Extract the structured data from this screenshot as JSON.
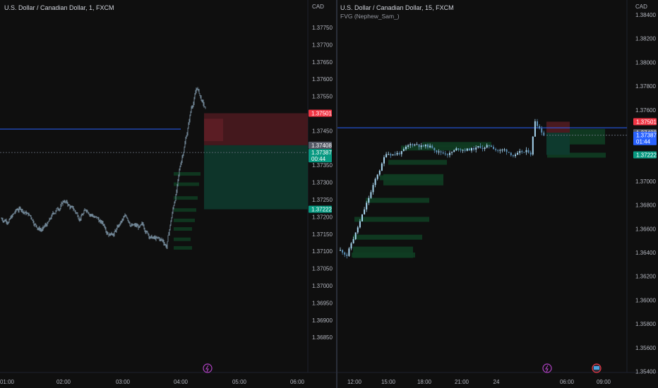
{
  "left_chart": {
    "title": "U.S. Dollar / Canadian Dollar, 1, FXCM",
    "currency": "CAD",
    "time_labels": [
      "01:00",
      "02:00",
      "03:00",
      "04:00",
      "05:00",
      "06:00"
    ],
    "chart_data": {
      "type": "candlestick",
      "symbol": "USDCAD",
      "interval": "1",
      "y_ticks": [
        "1.37750",
        "1.37700",
        "1.37650",
        "1.37600",
        "1.37550",
        "1.37450",
        "1.37350",
        "1.37300",
        "1.37250",
        "1.37200",
        "1.37150",
        "1.37100",
        "1.37050",
        "1.37000",
        "1.36950",
        "1.36900",
        "1.36850"
      ],
      "price_labels": [
        {
          "value": 1.37501,
          "text": "1.37501",
          "color": "#f23645"
        },
        {
          "value": 1.37408,
          "text": "1.37408",
          "color": "#555a66"
        },
        {
          "value": 1.37387,
          "text": "1.37387",
          "sub": "00:44",
          "color": "#089981"
        },
        {
          "value": 1.37222,
          "text": "1.37222",
          "color": "#089981"
        }
      ],
      "horizontal_line": 1.37455
    }
  },
  "right_chart": {
    "title": "U.S. Dollar / Canadian Dollar, 15, FXCM",
    "indicator": "FVG (Nephew_Sam_)",
    "currency": "CAD",
    "time_labels": [
      "12:00",
      "15:00",
      "18:00",
      "21:00",
      "24",
      "06:00",
      "09:00"
    ],
    "chart_data": {
      "type": "candlestick",
      "symbol": "USDCAD",
      "interval": "15",
      "y_ticks": [
        "1.38400",
        "1.38200",
        "1.38000",
        "1.37800",
        "1.37600",
        "1.37000",
        "1.36800",
        "1.36600",
        "1.36400",
        "1.36200",
        "1.36000",
        "1.35800",
        "1.35600",
        "1.35400"
      ],
      "price_labels": [
        {
          "value": 1.37501,
          "text": "1.37501",
          "color": "#f23645"
        },
        {
          "value": 1.37408,
          "text": "1.37408",
          "color": "#555a66"
        },
        {
          "value": 1.37387,
          "text": "1.37387",
          "sub": "01:44",
          "color": "#2962ff"
        },
        {
          "value": 1.37222,
          "text": "1.37222",
          "color": "#089981"
        }
      ],
      "horizontal_line": 1.3745
    }
  },
  "colors": {
    "up": "#26a69a",
    "down": "#ef5350",
    "candle_left": "#8aa4b8",
    "hline": "#2962ff",
    "stop_zone": "#4a1a1f",
    "target_zone": "#0e3a2e",
    "fvg": "#0f3d22"
  }
}
